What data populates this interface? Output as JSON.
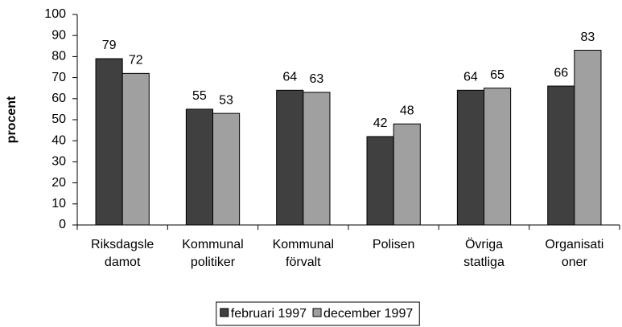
{
  "chart_data": {
    "type": "bar",
    "y_label": "procent",
    "categories": [
      [
        "Riksdagsle",
        "damot"
      ],
      [
        "Kommunal",
        "politiker"
      ],
      [
        "Kommunal",
        "förvalt"
      ],
      [
        "Polisen"
      ],
      [
        "Övriga",
        "statliga"
      ],
      [
        "Organisati",
        "oner"
      ]
    ],
    "series": [
      {
        "name": "februari 1997",
        "color": "#404040",
        "values": [
          79,
          55,
          64,
          42,
          64,
          66
        ]
      },
      {
        "name": "december 1997",
        "color": "#a0a0a0",
        "values": [
          72,
          53,
          63,
          48,
          65,
          83
        ]
      }
    ],
    "ylim": [
      0,
      100
    ],
    "yticks": [
      0,
      10,
      20,
      30,
      40,
      50,
      60,
      70,
      80,
      90,
      100
    ],
    "legend": "bottom"
  }
}
